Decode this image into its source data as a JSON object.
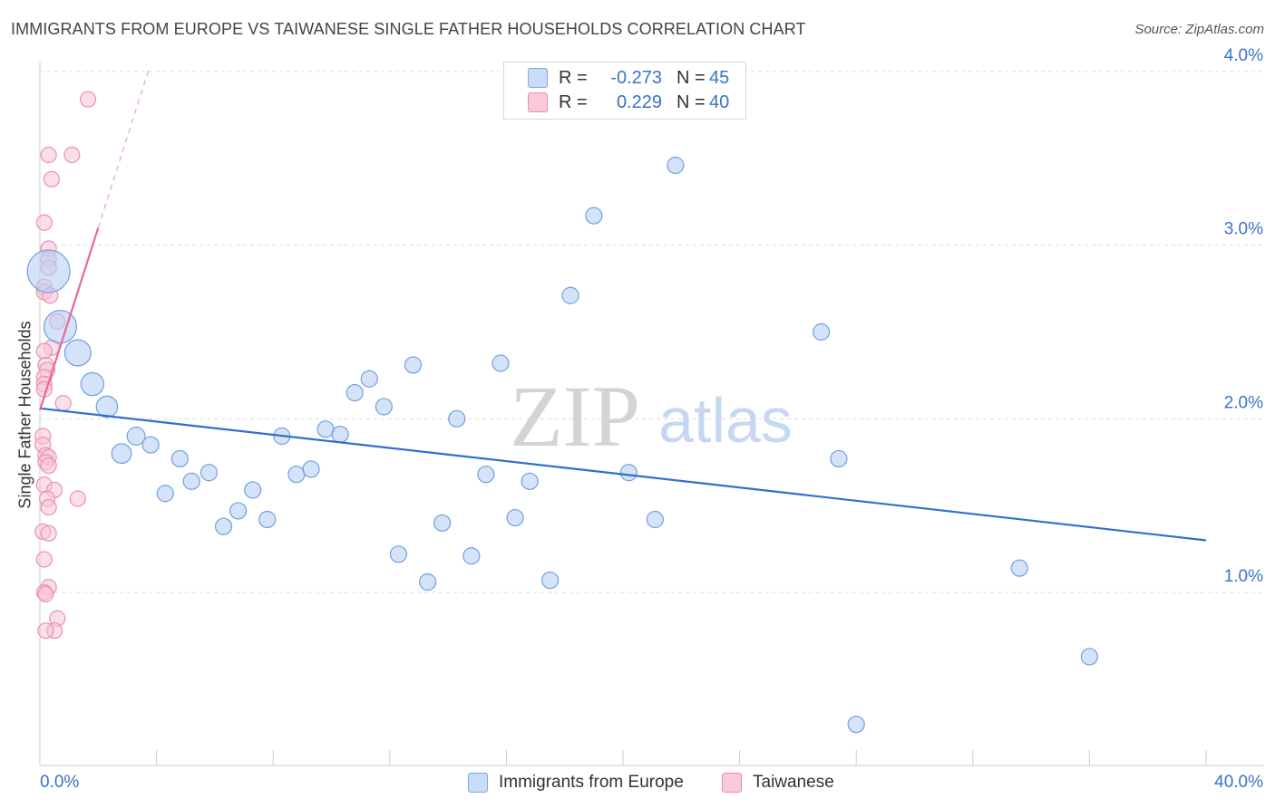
{
  "header": {
    "title": "IMMIGRANTS FROM EUROPE VS TAIWANESE SINGLE FATHER HOUSEHOLDS CORRELATION CHART",
    "source": "Source: ZipAtlas.com"
  },
  "watermark": {
    "zip": "ZIP",
    "atlas": "atlas"
  },
  "legend": {
    "r_label": "R =",
    "n_label": "N =",
    "series": [
      {
        "name": "Immigrants from Europe",
        "r": "-0.273",
        "n": "45",
        "color": "#7aa8e8",
        "fill": "#c9dcf5"
      },
      {
        "name": "Taiwanese",
        "r": "0.229",
        "n": "40",
        "color": "#ee8aaa",
        "fill": "#f9cad9"
      }
    ]
  },
  "chart_data": {
    "type": "scatter",
    "title": "IMMIGRANTS FROM EUROPE VS TAIWANESE SINGLE FATHER HOUSEHOLDS CORRELATION CHART",
    "xlabel": "",
    "ylabel": "Single Father Households",
    "xlim": [
      0,
      40
    ],
    "ylim": [
      0,
      4.2
    ],
    "x_tick_labels": [
      "0.0%",
      "40.0%"
    ],
    "y_ticks": [
      1.0,
      2.0,
      3.0,
      4.0
    ],
    "y_tick_labels": [
      "1.0%",
      "2.0%",
      "3.0%",
      "4.0%"
    ],
    "grid": true,
    "legend_position": "top-center",
    "series": [
      {
        "name": "Immigrants from Europe",
        "color": "#5b8fdc",
        "points": [
          {
            "x": 0.3,
            "y": 2.85,
            "s": 2.6
          },
          {
            "x": 0.7,
            "y": 2.53,
            "s": 2.0
          },
          {
            "x": 1.3,
            "y": 2.38,
            "s": 1.6
          },
          {
            "x": 1.8,
            "y": 2.2,
            "s": 1.4
          },
          {
            "x": 2.3,
            "y": 2.07,
            "s": 1.3
          },
          {
            "x": 2.8,
            "y": 1.8,
            "s": 1.2
          },
          {
            "x": 3.3,
            "y": 1.9,
            "s": 1.1
          },
          {
            "x": 3.8,
            "y": 1.85,
            "s": 1.0
          },
          {
            "x": 4.3,
            "y": 1.57,
            "s": 1.0
          },
          {
            "x": 4.8,
            "y": 1.77,
            "s": 1.0
          },
          {
            "x": 5.2,
            "y": 1.64,
            "s": 1.0
          },
          {
            "x": 5.8,
            "y": 1.69,
            "s": 1.0
          },
          {
            "x": 6.3,
            "y": 1.38,
            "s": 1.0
          },
          {
            "x": 6.8,
            "y": 1.47,
            "s": 1.0
          },
          {
            "x": 7.3,
            "y": 1.59,
            "s": 1.0
          },
          {
            "x": 7.8,
            "y": 1.42,
            "s": 1.0
          },
          {
            "x": 8.3,
            "y": 1.9,
            "s": 1.0
          },
          {
            "x": 8.8,
            "y": 1.68,
            "s": 1.0
          },
          {
            "x": 9.3,
            "y": 1.71,
            "s": 1.0
          },
          {
            "x": 9.8,
            "y": 1.94,
            "s": 1.0
          },
          {
            "x": 10.3,
            "y": 1.91,
            "s": 1.0
          },
          {
            "x": 10.8,
            "y": 2.15,
            "s": 1.0
          },
          {
            "x": 11.3,
            "y": 2.23,
            "s": 1.0
          },
          {
            "x": 11.8,
            "y": 2.07,
            "s": 1.0
          },
          {
            "x": 12.3,
            "y": 1.22,
            "s": 1.0
          },
          {
            "x": 12.8,
            "y": 2.31,
            "s": 1.0
          },
          {
            "x": 13.3,
            "y": 1.06,
            "s": 1.0
          },
          {
            "x": 13.8,
            "y": 1.4,
            "s": 1.0
          },
          {
            "x": 14.3,
            "y": 2.0,
            "s": 1.0
          },
          {
            "x": 14.8,
            "y": 1.21,
            "s": 1.0
          },
          {
            "x": 15.3,
            "y": 1.68,
            "s": 1.0
          },
          {
            "x": 15.8,
            "y": 2.32,
            "s": 1.0
          },
          {
            "x": 16.3,
            "y": 1.43,
            "s": 1.0
          },
          {
            "x": 16.8,
            "y": 1.64,
            "s": 1.0
          },
          {
            "x": 17.5,
            "y": 1.07,
            "s": 1.0
          },
          {
            "x": 18.2,
            "y": 2.71,
            "s": 1.0
          },
          {
            "x": 19.0,
            "y": 3.17,
            "s": 1.0
          },
          {
            "x": 20.2,
            "y": 1.69,
            "s": 1.0
          },
          {
            "x": 21.1,
            "y": 1.42,
            "s": 1.0
          },
          {
            "x": 21.8,
            "y": 3.46,
            "s": 1.0
          },
          {
            "x": 26.8,
            "y": 2.5,
            "s": 1.0
          },
          {
            "x": 27.4,
            "y": 1.77,
            "s": 1.0
          },
          {
            "x": 28.0,
            "y": 0.24,
            "s": 1.0
          },
          {
            "x": 33.6,
            "y": 1.14,
            "s": 1.0
          },
          {
            "x": 36.0,
            "y": 0.63,
            "s": 1.0
          }
        ],
        "trend": {
          "x": [
            0,
            40
          ],
          "y": [
            2.06,
            1.3
          ]
        }
      },
      {
        "name": "Taiwanese",
        "color": "#ee8aaa",
        "points": [
          {
            "x": 1.65,
            "y": 3.84
          },
          {
            "x": 0.3,
            "y": 3.52
          },
          {
            "x": 1.1,
            "y": 3.52
          },
          {
            "x": 0.4,
            "y": 3.38
          },
          {
            "x": 0.15,
            "y": 3.13
          },
          {
            "x": 0.3,
            "y": 2.98
          },
          {
            "x": 0.3,
            "y": 2.92
          },
          {
            "x": 0.3,
            "y": 2.87
          },
          {
            "x": 0.15,
            "y": 2.76
          },
          {
            "x": 0.15,
            "y": 2.73
          },
          {
            "x": 0.35,
            "y": 2.71
          },
          {
            "x": 0.6,
            "y": 2.56
          },
          {
            "x": 0.4,
            "y": 2.41
          },
          {
            "x": 0.15,
            "y": 2.39
          },
          {
            "x": 0.2,
            "y": 2.31
          },
          {
            "x": 0.25,
            "y": 2.28
          },
          {
            "x": 0.15,
            "y": 2.24
          },
          {
            "x": 0.15,
            "y": 2.2
          },
          {
            "x": 0.15,
            "y": 2.17
          },
          {
            "x": 0.8,
            "y": 2.09
          },
          {
            "x": 0.1,
            "y": 1.9
          },
          {
            "x": 0.1,
            "y": 1.85
          },
          {
            "x": 0.2,
            "y": 1.79
          },
          {
            "x": 0.3,
            "y": 1.78
          },
          {
            "x": 0.2,
            "y": 1.75
          },
          {
            "x": 0.3,
            "y": 1.73
          },
          {
            "x": 0.15,
            "y": 1.62
          },
          {
            "x": 0.5,
            "y": 1.59
          },
          {
            "x": 1.3,
            "y": 1.54
          },
          {
            "x": 0.25,
            "y": 1.54
          },
          {
            "x": 0.3,
            "y": 1.49
          },
          {
            "x": 0.1,
            "y": 1.35
          },
          {
            "x": 0.3,
            "y": 1.34
          },
          {
            "x": 0.15,
            "y": 1.19
          },
          {
            "x": 0.3,
            "y": 1.03
          },
          {
            "x": 0.15,
            "y": 1.0
          },
          {
            "x": 0.2,
            "y": 0.99
          },
          {
            "x": 0.6,
            "y": 0.85
          },
          {
            "x": 0.5,
            "y": 0.78
          },
          {
            "x": 0.2,
            "y": 0.78
          }
        ],
        "trend": {
          "x": [
            0,
            2.0
          ],
          "y": [
            2.05,
            3.1
          ]
        },
        "trend_extension": {
          "x": [
            2.0,
            3.75
          ],
          "y": [
            3.1,
            4.02
          ]
        }
      }
    ]
  }
}
